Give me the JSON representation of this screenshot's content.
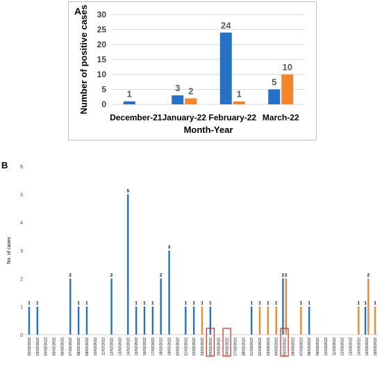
{
  "chart_data": [
    {
      "type": "bar",
      "panel_label": "A",
      "xlabel": "Month-Year",
      "ylabel": "Number of positive cases",
      "ylim": [
        0,
        30
      ],
      "yticks": [
        "0",
        "5",
        "10",
        "15",
        "20",
        "25",
        "30"
      ],
      "grid": true,
      "legend": "none",
      "categories": [
        "December-21",
        "January-22",
        "February-22",
        "March-22"
      ],
      "series": [
        {
          "color": "#2472c8",
          "values": [
            1,
            3,
            24,
            5
          ]
        },
        {
          "color": "#f5862e",
          "values": [
            null,
            2,
            1,
            10
          ]
        }
      ]
    },
    {
      "type": "bar",
      "panel_label": "B",
      "ylabel": "No. of cases",
      "ylim": [
        0,
        6
      ],
      "yticks": [
        "0",
        "1",
        "2",
        "3",
        "4",
        "5",
        "6"
      ],
      "grid": false,
      "legend": "none",
      "categories": [
        "02/02/2022",
        "03/02/2022",
        "04/02/2022",
        "05/02/2022",
        "06/02/2022",
        "07/02/2022",
        "08/02/2022",
        "09/02/2022",
        "10/02/2022",
        "11/02/2022",
        "12/02/2022",
        "13/02/2022",
        "14/02/2022",
        "15/02/2022",
        "16/02/2022",
        "17/02/2022",
        "18/02/2022",
        "19/02/2022",
        "20/02/2022",
        "21/02/2022",
        "22/02/2022",
        "23/02/2022",
        "24/02/2022",
        "25/02/2022",
        "26/02/2022",
        "27/02/2022",
        "28/02/2022",
        "01/03/2022",
        "02/03/2022",
        "03/03/2022",
        "04/03/2022",
        "05/03/2022",
        "06/03/2022",
        "07/03/2022",
        "08/03/2022",
        "09/03/2022",
        "10/03/2022",
        "11/03/2022",
        "12/03/2022",
        "13/03/2022",
        "14/03/2022",
        "15/03/2022",
        "16/03/2022"
      ],
      "series": [
        {
          "color": "#2472c8",
          "values": [
            1,
            1,
            0,
            0,
            0,
            2,
            1,
            1,
            0,
            0,
            2,
            0,
            5,
            1,
            1,
            1,
            2,
            3,
            0,
            1,
            1,
            0,
            1,
            0,
            0,
            0,
            0,
            1,
            0,
            0,
            0,
            2,
            0,
            0,
            1,
            0,
            0,
            0,
            0,
            0,
            0,
            1,
            0
          ]
        },
        {
          "color": "#f5862e",
          "values": [
            0,
            0,
            0,
            0,
            0,
            0,
            0,
            0,
            0,
            0,
            0,
            0,
            0,
            0,
            0,
            0,
            0,
            0,
            0,
            0,
            0,
            1,
            0,
            0,
            0,
            0,
            0,
            0,
            1,
            1,
            1,
            2,
            0,
            1,
            0,
            0,
            0,
            0,
            0,
            0,
            1,
            2,
            1
          ]
        }
      ],
      "highlighted_dates": [
        "24/02/2022",
        "26/02/2022",
        "05/03/2022"
      ],
      "highlight_color": "#e0201b"
    }
  ]
}
